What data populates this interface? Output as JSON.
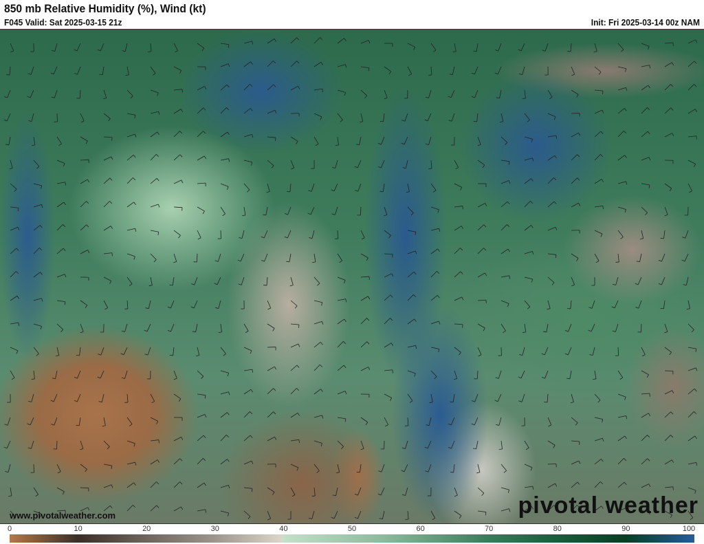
{
  "header": {
    "title": "850 mb Relative Humidity (%), Wind (kt)",
    "valid": "F045 Valid: Sat 2025-03-15 21z",
    "init": "Init: Fri 2025-03-14 00z NAM"
  },
  "map": {
    "watermark": "pivotal weather",
    "url": "www.pivotalweather.com"
  },
  "colorbar": {
    "ticks": [
      "0",
      "10",
      "20",
      "30",
      "40",
      "50",
      "60",
      "70",
      "80",
      "90",
      "100"
    ],
    "colors": {
      "0": "#b07a4e",
      "10": "#3b2e26",
      "20": "#6e665c",
      "30": "#9d968c",
      "40": "#c4e0c8",
      "70": "#3d7a5a",
      "90": "#0a3d24",
      "100": "#2a5a96"
    }
  }
}
